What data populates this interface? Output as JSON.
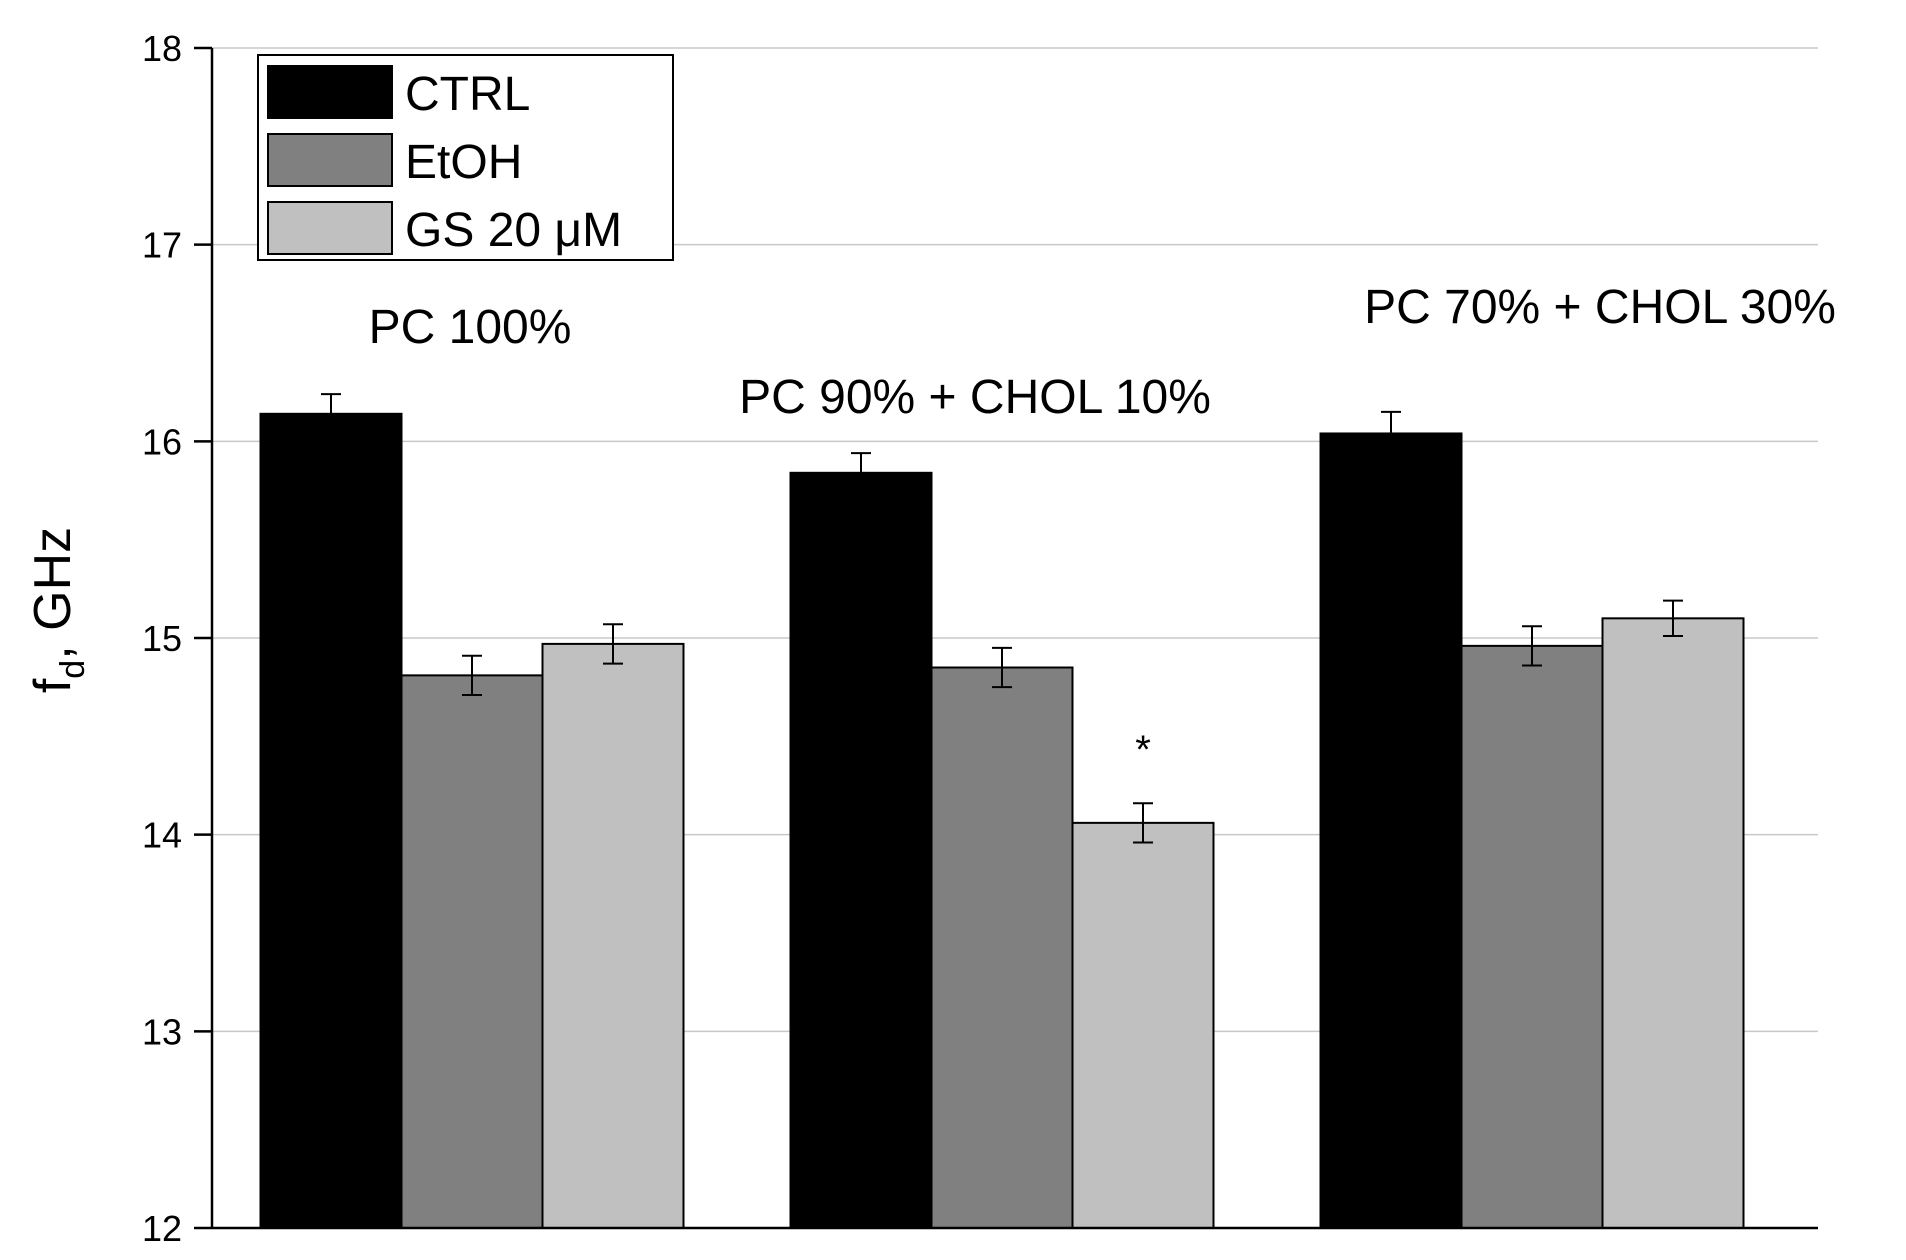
{
  "chart_data": {
    "type": "bar",
    "title": "",
    "xlabel": "",
    "ylabel": "f",
    "ylabel_sub": "d",
    "ylabel_unit": ", GHz",
    "ylim": [
      12,
      18
    ],
    "yticks": [
      "12",
      "13",
      "14",
      "15",
      "16",
      "17",
      "18"
    ],
    "grid": "horizontal",
    "legend_position": "top-left",
    "categories": [
      "PC 100%",
      "PC 90% + CHOL 10%",
      "PC 70% + CHOL 30%"
    ],
    "series": [
      {
        "name": "CTRL",
        "color": "#000000",
        "values": [
          16.14,
          15.84,
          16.04
        ],
        "errors": [
          0.1,
          0.1,
          0.11
        ]
      },
      {
        "name": "EtOH",
        "color": "#808080",
        "values": [
          14.81,
          14.85,
          14.96
        ],
        "errors": [
          0.1,
          0.1,
          0.1
        ]
      },
      {
        "name": "GS 20 μM",
        "color": "#c0c0c0",
        "values": [
          14.97,
          14.06,
          15.1
        ],
        "errors": [
          0.1,
          0.1,
          0.09
        ]
      }
    ],
    "annotations": [
      {
        "category_index": 1,
        "series_index": 2,
        "text": "*"
      }
    ]
  }
}
